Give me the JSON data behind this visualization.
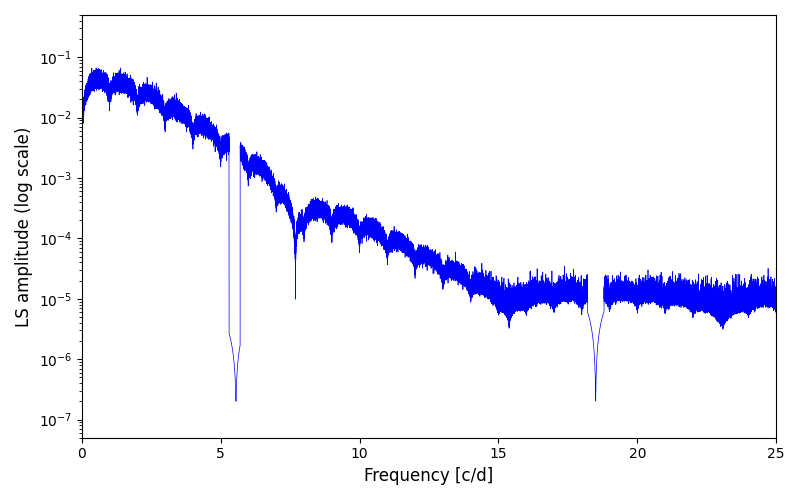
{
  "xlabel": "Frequency [c/d]",
  "ylabel": "LS amplitude (log scale)",
  "xlim": [
    0,
    25
  ],
  "ylim": [
    5e-08,
    0.5
  ],
  "line_color": "#0000ff",
  "line_width": 0.5,
  "background_color": "#ffffff",
  "figsize": [
    8.0,
    5.0
  ],
  "dpi": 100,
  "n_points": 80000
}
